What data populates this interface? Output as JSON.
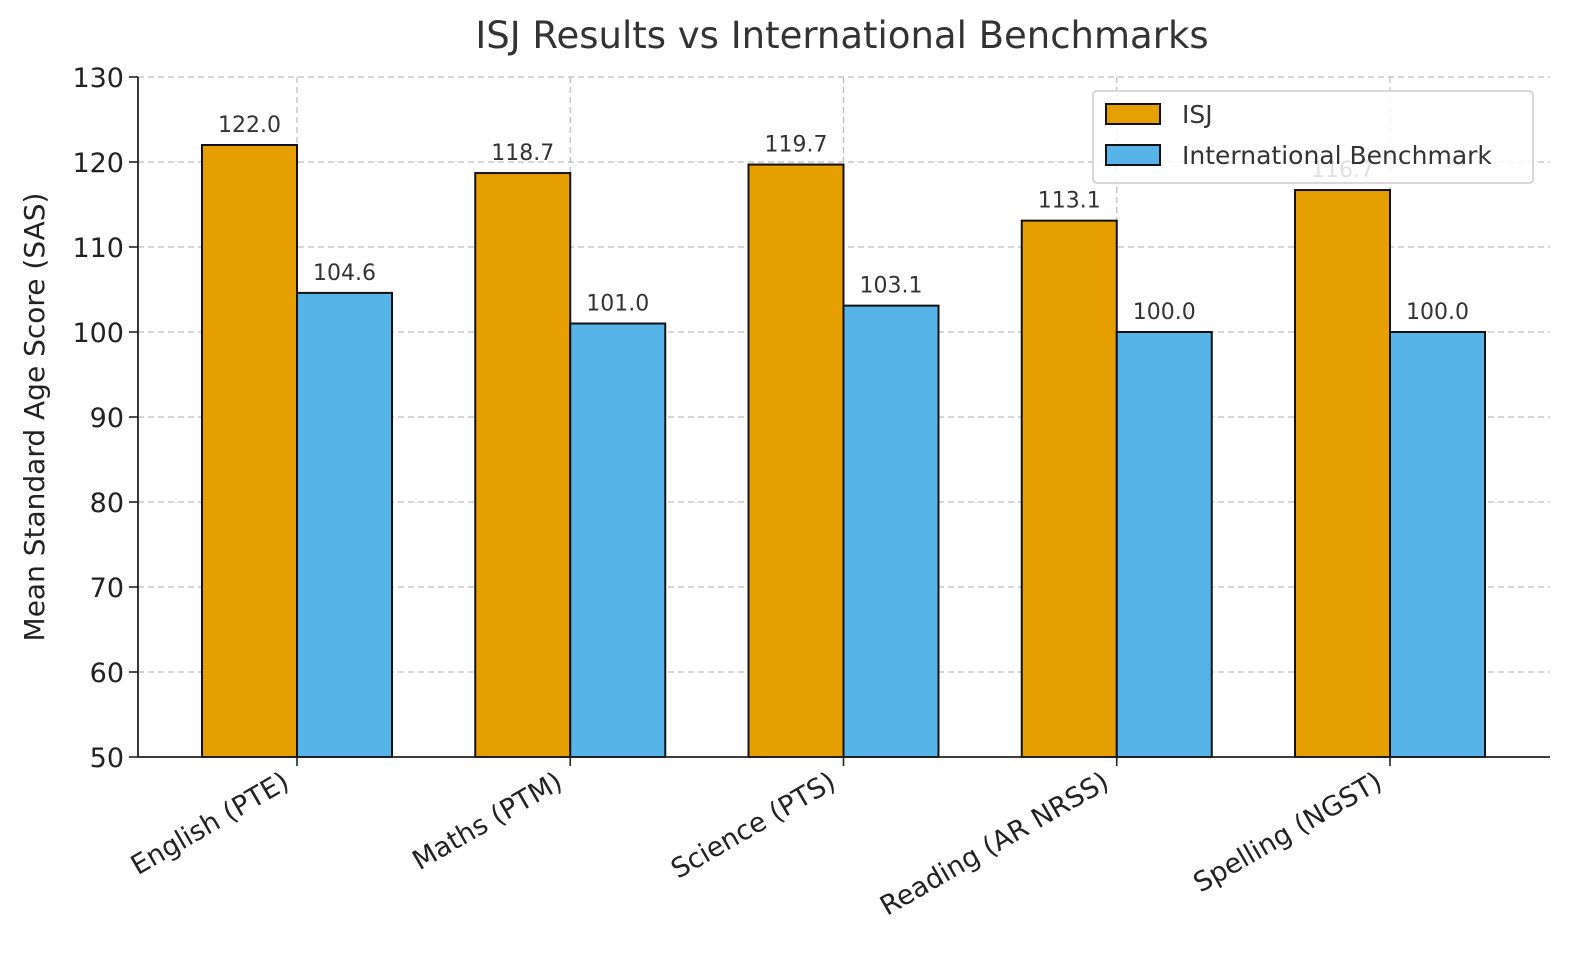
{
  "chart_data": {
    "type": "bar",
    "title": "ISJ Results vs International Benchmarks",
    "xlabel": "",
    "ylabel": "Mean Standard Age Score (SAS)",
    "ylim": [
      50,
      130
    ],
    "yticks": [
      50,
      60,
      70,
      80,
      90,
      100,
      110,
      120,
      130
    ],
    "categories": [
      "English (PTE)",
      "Maths (PTM)",
      "Science (PTS)",
      "Reading (AR NRSS)",
      "Spelling (NGST)"
    ],
    "series": [
      {
        "name": "ISJ",
        "values": [
          122.0,
          118.7,
          119.7,
          113.1,
          116.7
        ],
        "color": "#E69F00"
      },
      {
        "name": "International Benchmark",
        "values": [
          104.6,
          101.0,
          103.1,
          100.0,
          100.0
        ],
        "color": "#56B4E9"
      }
    ],
    "data_labels": [
      [
        "122.0",
        "118.7",
        "119.7",
        "113.1",
        "116.7"
      ],
      [
        "104.6",
        "101.0",
        "103.1",
        "100.0",
        "100.0"
      ]
    ],
    "grid": true,
    "legend_position": "top-right"
  }
}
